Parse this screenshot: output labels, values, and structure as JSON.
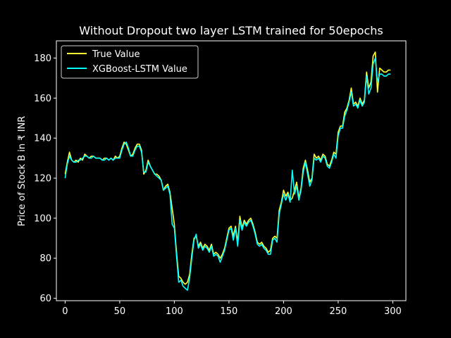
{
  "chart_data": {
    "type": "line",
    "title": "Without Dropout two layer LSTM trained for 50epochs",
    "xlabel": "",
    "ylabel": "Price of Stock B in ₹ INR",
    "xlim": [
      -8,
      312
    ],
    "ylim": [
      58.8,
      188.6
    ],
    "xticks": [
      0,
      50,
      100,
      150,
      200,
      250,
      300
    ],
    "yticks": [
      60,
      80,
      100,
      120,
      140,
      160,
      180
    ],
    "grid": false,
    "legend_position": "top-left",
    "colors": {
      "background": "#000000",
      "axes": "#ffffff",
      "true_value": "#ffff33",
      "predicted": "#00ffff"
    },
    "series": [
      {
        "name": "True Value",
        "color": "#ffff33",
        "x": [
          0,
          2,
          4,
          6,
          8,
          10,
          12,
          14,
          16,
          18,
          20,
          22,
          24,
          26,
          28,
          30,
          32,
          34,
          36,
          38,
          40,
          42,
          44,
          46,
          48,
          50,
          52,
          54,
          56,
          58,
          60,
          62,
          64,
          66,
          68,
          70,
          72,
          74,
          76,
          78,
          80,
          82,
          84,
          86,
          88,
          90,
          92,
          94,
          96,
          98,
          100,
          102,
          104,
          106,
          108,
          110,
          112,
          114,
          116,
          118,
          120,
          122,
          124,
          126,
          128,
          130,
          132,
          134,
          136,
          138,
          140,
          142,
          144,
          146,
          148,
          150,
          152,
          154,
          156,
          158,
          160,
          162,
          164,
          166,
          168,
          170,
          172,
          174,
          176,
          178,
          180,
          182,
          184,
          186,
          188,
          190,
          192,
          194,
          196,
          198,
          200,
          202,
          204,
          206,
          208,
          210,
          212,
          214,
          216,
          218,
          220,
          222,
          224,
          226,
          228,
          230,
          232,
          234,
          236,
          238,
          240,
          242,
          244,
          246,
          248,
          250,
          252,
          254,
          256,
          258,
          260,
          262,
          264,
          266,
          268,
          270,
          272,
          274,
          276,
          278,
          280,
          282,
          284,
          286,
          288,
          290,
          292,
          294,
          296,
          298
        ],
        "values": [
          122,
          128,
          133,
          129,
          128,
          129,
          128,
          130,
          129,
          132,
          131,
          130,
          131,
          131,
          130,
          130,
          130,
          129,
          130,
          130,
          129,
          130,
          129,
          131,
          130,
          131,
          135,
          138,
          137,
          134,
          131,
          132,
          135,
          137,
          137,
          134,
          122,
          124,
          129,
          126,
          124,
          122,
          122,
          121,
          119,
          114,
          116,
          117,
          113,
          105,
          97,
          83,
          71,
          70,
          68,
          67,
          68,
          72,
          82,
          90,
          91,
          86,
          88,
          85,
          87,
          86,
          84,
          87,
          82,
          83,
          82,
          80,
          82,
          85,
          90,
          95,
          96,
          91,
          96,
          88,
          101,
          95,
          99,
          97,
          99,
          100,
          97,
          93,
          88,
          87,
          88,
          86,
          85,
          83,
          84,
          90,
          91,
          90,
          104,
          108,
          114,
          111,
          113,
          109,
          110,
          114,
          118,
          110,
          115,
          125,
          129,
          124,
          118,
          120,
          132,
          130,
          131,
          129,
          132,
          131,
          127,
          126,
          129,
          133,
          132,
          143,
          146,
          146,
          153,
          155,
          159,
          165,
          157,
          158,
          156,
          160,
          157,
          159,
          173,
          165,
          168,
          181,
          183,
          163,
          175,
          174,
          173,
          173,
          174,
          174
        ]
      },
      {
        "name": "XGBoost-LSTM Value",
        "color": "#00ffff",
        "x": [
          0,
          2,
          4,
          6,
          8,
          10,
          12,
          14,
          16,
          18,
          20,
          22,
          24,
          26,
          28,
          30,
          32,
          34,
          36,
          38,
          40,
          42,
          44,
          46,
          48,
          50,
          52,
          54,
          56,
          58,
          60,
          62,
          64,
          66,
          68,
          70,
          72,
          74,
          76,
          78,
          80,
          82,
          84,
          86,
          88,
          90,
          92,
          94,
          96,
          98,
          100,
          102,
          104,
          106,
          108,
          110,
          112,
          114,
          116,
          118,
          120,
          122,
          124,
          126,
          128,
          130,
          132,
          134,
          136,
          138,
          140,
          142,
          144,
          146,
          148,
          150,
          152,
          154,
          156,
          158,
          160,
          162,
          164,
          166,
          168,
          170,
          172,
          174,
          176,
          178,
          180,
          182,
          184,
          186,
          188,
          190,
          192,
          194,
          196,
          198,
          200,
          202,
          204,
          206,
          208,
          210,
          212,
          214,
          216,
          218,
          220,
          222,
          224,
          226,
          228,
          230,
          232,
          234,
          236,
          238,
          240,
          242,
          244,
          246,
          248,
          250,
          252,
          254,
          256,
          258,
          260,
          262,
          264,
          266,
          268,
          270,
          272,
          274,
          276,
          278,
          280,
          282,
          284,
          286,
          288,
          290,
          292,
          294,
          296,
          298
        ],
        "values": [
          120,
          127,
          131,
          129,
          128,
          128,
          129,
          129,
          130,
          131,
          131,
          130,
          130,
          131,
          130,
          130,
          130,
          129,
          129,
          130,
          129,
          130,
          129,
          130,
          130,
          130,
          134,
          137,
          138,
          135,
          131,
          131,
          134,
          136,
          136,
          133,
          123,
          123,
          128,
          126,
          124,
          122,
          121,
          120,
          119,
          114,
          115,
          116,
          112,
          97,
          95,
          81,
          68,
          69,
          66,
          65,
          64,
          70,
          80,
          89,
          92,
          85,
          87,
          84,
          86,
          85,
          83,
          86,
          81,
          82,
          81,
          78,
          81,
          84,
          89,
          94,
          95,
          89,
          95,
          86,
          99,
          94,
          98,
          96,
          98,
          99,
          96,
          92,
          87,
          86,
          87,
          85,
          84,
          82,
          82,
          89,
          90,
          88,
          102,
          107,
          112,
          109,
          112,
          108,
          124,
          112,
          116,
          109,
          114,
          123,
          128,
          122,
          116,
          119,
          130,
          129,
          130,
          128,
          131,
          130,
          126,
          125,
          128,
          132,
          130,
          141,
          145,
          145,
          151,
          154,
          158,
          163,
          156,
          157,
          155,
          159,
          156,
          158,
          171,
          162,
          165,
          177,
          180,
          168,
          172,
          172,
          171,
          171,
          172,
          172
        ]
      }
    ]
  }
}
